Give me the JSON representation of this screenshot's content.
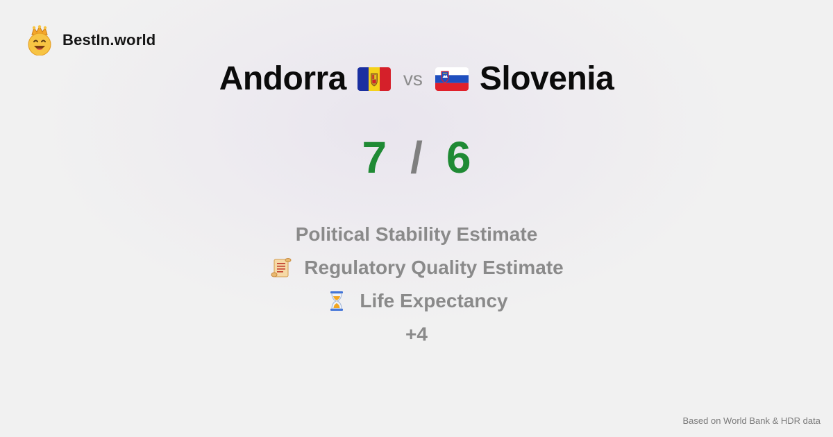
{
  "brand": {
    "name": "BestIn.world",
    "icon": "crowned-smiley-icon"
  },
  "comparison": {
    "left": {
      "name": "Andorra",
      "flag": "andorra-flag-icon",
      "score": "7"
    },
    "vs_label": "vs",
    "right": {
      "name": "Slovenia",
      "flag": "slovenia-flag-icon",
      "score": "6"
    },
    "separator": "/"
  },
  "metrics": [
    {
      "label": "Political Stability Estimate",
      "icon": ""
    },
    {
      "label": "Regulatory Quality Estimate",
      "icon": "scroll-icon"
    },
    {
      "label": "Life Expectancy",
      "icon": "hourglass-icon"
    }
  ],
  "more_label": "+4",
  "footer": {
    "source": "Based on World Bank & HDR data"
  },
  "colors": {
    "score": "#1f8a34",
    "muted": "#8a8a8a",
    "title": "#0b0b0b"
  }
}
